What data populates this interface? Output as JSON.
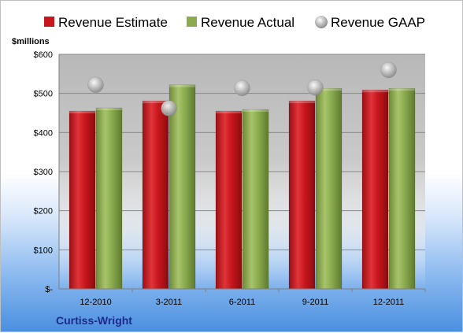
{
  "chart_data": {
    "type": "bar",
    "company": "Curtiss-Wright",
    "ylabel": "$millions",
    "categories": [
      "12-2010",
      "3-2011",
      "6-2011",
      "9-2011",
      "12-2011"
    ],
    "series": [
      {
        "name": "Revenue Estimate",
        "type": "bar",
        "color": "#c8161d",
        "values": [
          455,
          481,
          455,
          481,
          509
        ]
      },
      {
        "name": "Revenue Actual",
        "type": "bar",
        "color": "#8aac4e",
        "values": [
          463,
          522,
          459,
          513,
          513
        ]
      },
      {
        "name": "Revenue GAAP",
        "type": "marker",
        "color": "#a6a6a6",
        "values": [
          522,
          462,
          514,
          515,
          560
        ]
      }
    ],
    "ylim": [
      0,
      600
    ],
    "yticks": [
      0,
      100,
      200,
      300,
      400,
      500,
      600
    ],
    "ytick_labels": [
      "$-",
      "$100",
      "$200",
      "$300",
      "$400",
      "$500",
      "$600"
    ],
    "grid": true,
    "legend_position": "top"
  }
}
